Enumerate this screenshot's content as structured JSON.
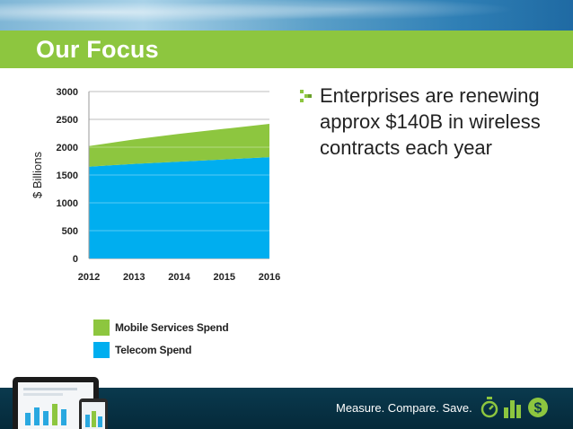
{
  "slide": {
    "title": "Our Focus",
    "bullet": "Enterprises are renewing approx $140B in wireless contracts each year"
  },
  "footer": {
    "tagline": "Measure. Compare. Save.",
    "icons": [
      "stopwatch-icon",
      "bar-chart-icon",
      "dollar-icon"
    ]
  },
  "colors": {
    "title_bar": "#8dc63f",
    "mobile": "#8dc63f",
    "telecom": "#00aeef",
    "footer_bg": "#0a3a4e"
  },
  "chart_data": {
    "type": "area",
    "stacked": true,
    "x": [
      2012,
      2013,
      2014,
      2015,
      2016
    ],
    "x_ticks": [
      "2012",
      "2013",
      "2014",
      "2015",
      "2016"
    ],
    "y_ticks": [
      "0",
      "500",
      "1000",
      "1500",
      "2000",
      "2500",
      "3000"
    ],
    "ylabel": "$ Billions",
    "ylim": [
      0,
      3000
    ],
    "grid": true,
    "legend_position": "bottom-left",
    "series": [
      {
        "name": "Telecom Spend",
        "color": "#00aeef",
        "values": [
          1650,
          1700,
          1740,
          1780,
          1820
        ]
      },
      {
        "name": "Mobile Services Spend",
        "color": "#8dc63f",
        "values": [
          370,
          440,
          500,
          550,
          600
        ]
      }
    ],
    "legend": [
      {
        "name": "Mobile Services Spend",
        "color": "#8dc63f"
      },
      {
        "name": "Telecom Spend",
        "color": "#00aeef"
      }
    ]
  }
}
